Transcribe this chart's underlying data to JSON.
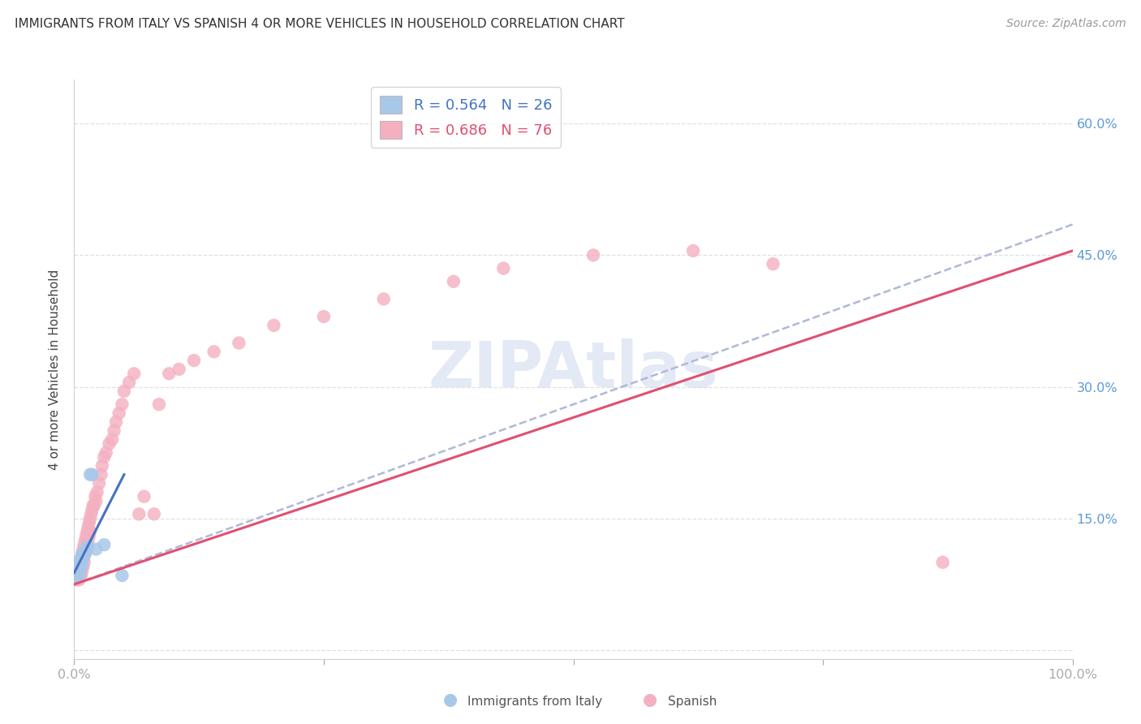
{
  "title": "IMMIGRANTS FROM ITALY VS SPANISH 4 OR MORE VEHICLES IN HOUSEHOLD CORRELATION CHART",
  "source": "Source: ZipAtlas.com",
  "ylabel": "4 or more Vehicles in Household",
  "xlim": [
    0.0,
    1.0
  ],
  "ylim": [
    -0.01,
    0.65
  ],
  "yticks": [
    0.0,
    0.15,
    0.3,
    0.45,
    0.6
  ],
  "ytick_labels": [
    "",
    "15.0%",
    "30.0%",
    "45.0%",
    "60.0%"
  ],
  "xtick_positions": [
    0.0,
    0.25,
    0.5,
    0.75,
    1.0
  ],
  "xtick_labels": [
    "0.0%",
    "",
    "",
    "",
    "100.0%"
  ],
  "legend_label1": "R = 0.564   N = 26",
  "legend_label2": "R = 0.686   N = 76",
  "scatter_color1": "#a8c8e8",
  "scatter_color2": "#f4b0c0",
  "line_color1": "#4472c4",
  "line_color2": "#e05070",
  "dash_color": "#b0b8d8",
  "axis_tick_color": "#5b9bd5",
  "title_color": "#333333",
  "source_color": "#999999",
  "ylabel_color": "#444444",
  "grid_color": "#e0e0e0",
  "background_color": "#ffffff",
  "watermark_color": "#ccd8ee",
  "italy_x": [
    0.002,
    0.003,
    0.003,
    0.004,
    0.004,
    0.004,
    0.005,
    0.005,
    0.005,
    0.006,
    0.006,
    0.007,
    0.007,
    0.008,
    0.008,
    0.009,
    0.01,
    0.011,
    0.012,
    0.013,
    0.014,
    0.016,
    0.018,
    0.022,
    0.03,
    0.048
  ],
  "italy_y": [
    0.09,
    0.085,
    0.095,
    0.088,
    0.092,
    0.098,
    0.085,
    0.09,
    0.095,
    0.092,
    0.1,
    0.095,
    0.105,
    0.1,
    0.11,
    0.105,
    0.108,
    0.11,
    0.115,
    0.115,
    0.118,
    0.2,
    0.2,
    0.115,
    0.12,
    0.085
  ],
  "spanish_x": [
    0.002,
    0.003,
    0.003,
    0.004,
    0.004,
    0.004,
    0.005,
    0.005,
    0.005,
    0.005,
    0.006,
    0.006,
    0.006,
    0.007,
    0.007,
    0.007,
    0.008,
    0.008,
    0.008,
    0.009,
    0.009,
    0.009,
    0.01,
    0.01,
    0.01,
    0.011,
    0.011,
    0.012,
    0.012,
    0.013,
    0.013,
    0.014,
    0.014,
    0.015,
    0.015,
    0.016,
    0.016,
    0.017,
    0.018,
    0.019,
    0.02,
    0.021,
    0.022,
    0.023,
    0.025,
    0.027,
    0.028,
    0.03,
    0.032,
    0.035,
    0.038,
    0.04,
    0.042,
    0.045,
    0.048,
    0.05,
    0.055,
    0.06,
    0.065,
    0.07,
    0.08,
    0.085,
    0.095,
    0.105,
    0.12,
    0.14,
    0.165,
    0.2,
    0.25,
    0.31,
    0.38,
    0.43,
    0.52,
    0.62,
    0.7,
    0.87
  ],
  "spanish_y": [
    0.08,
    0.085,
    0.09,
    0.085,
    0.09,
    0.095,
    0.08,
    0.09,
    0.095,
    0.1,
    0.085,
    0.09,
    0.1,
    0.085,
    0.095,
    0.105,
    0.09,
    0.1,
    0.11,
    0.095,
    0.105,
    0.115,
    0.1,
    0.11,
    0.12,
    0.11,
    0.125,
    0.115,
    0.13,
    0.12,
    0.135,
    0.125,
    0.14,
    0.13,
    0.145,
    0.135,
    0.15,
    0.155,
    0.16,
    0.165,
    0.165,
    0.175,
    0.17,
    0.18,
    0.19,
    0.2,
    0.21,
    0.22,
    0.225,
    0.235,
    0.24,
    0.25,
    0.26,
    0.27,
    0.28,
    0.295,
    0.305,
    0.315,
    0.155,
    0.175,
    0.155,
    0.28,
    0.315,
    0.32,
    0.33,
    0.34,
    0.35,
    0.37,
    0.38,
    0.4,
    0.42,
    0.435,
    0.45,
    0.455,
    0.44,
    0.1
  ],
  "pink_line_x0": 0.0,
  "pink_line_y0": 0.075,
  "pink_line_x1": 1.0,
  "pink_line_y1": 0.455,
  "dash_line_x0": 0.0,
  "dash_line_y0": 0.075,
  "dash_line_x1": 1.0,
  "dash_line_y1": 0.485,
  "blue_line_x0": 0.0,
  "blue_line_y0": 0.088,
  "blue_line_x1": 0.05,
  "blue_line_y1": 0.2
}
